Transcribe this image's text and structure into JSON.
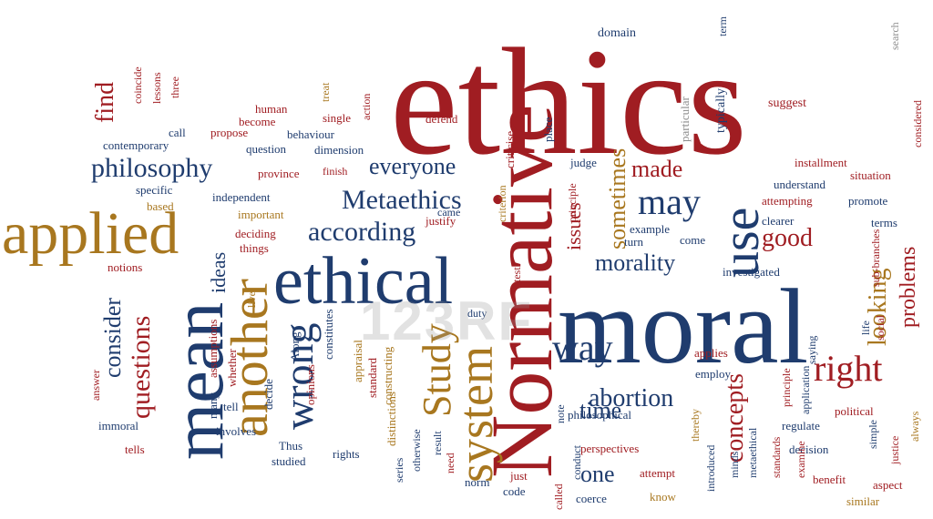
{
  "palette": {
    "navy": "#1f3c6e",
    "red": "#a01d22",
    "tan": "#a8771f",
    "gray": "#8c8c8c",
    "background": "#ffffff"
  },
  "watermark": "123RF",
  "words": [
    {
      "t": "ethics",
      "c": "red"
    },
    {
      "t": "moral",
      "c": "navy"
    },
    {
      "t": "Normative",
      "c": "red"
    },
    {
      "t": "ethical",
      "c": "navy"
    },
    {
      "t": "mean",
      "c": "navy"
    },
    {
      "t": "applied",
      "c": "tan"
    },
    {
      "t": "another",
      "c": "tan"
    },
    {
      "t": "use",
      "c": "navy"
    },
    {
      "t": "may",
      "c": "navy"
    },
    {
      "t": "right",
      "c": "red"
    },
    {
      "t": "way",
      "c": "navy"
    },
    {
      "t": "system",
      "c": "tan"
    },
    {
      "t": "wrong",
      "c": "navy"
    },
    {
      "t": "Study",
      "c": "tan"
    },
    {
      "t": "questions",
      "c": "red"
    },
    {
      "t": "Metaethics",
      "c": "navy"
    },
    {
      "t": "according",
      "c": "navy"
    },
    {
      "t": "philosophy",
      "c": "navy"
    },
    {
      "t": "everyone",
      "c": "navy"
    },
    {
      "t": "made",
      "c": "red"
    },
    {
      "t": "good",
      "c": "red"
    },
    {
      "t": "morality",
      "c": "navy"
    },
    {
      "t": "abortion",
      "c": "navy"
    },
    {
      "t": "concepts",
      "c": "red"
    },
    {
      "t": "looking",
      "c": "tan"
    },
    {
      "t": "problems",
      "c": "red"
    },
    {
      "t": "time",
      "c": "navy"
    },
    {
      "t": "one",
      "c": "navy"
    },
    {
      "t": "consider",
      "c": "navy"
    },
    {
      "t": "find",
      "c": "red"
    },
    {
      "t": "ideas",
      "c": "navy"
    },
    {
      "t": "issues",
      "c": "red"
    },
    {
      "t": "sometimes",
      "c": "tan"
    },
    {
      "t": "domain",
      "c": "navy"
    },
    {
      "t": "term",
      "c": "navy"
    },
    {
      "t": "search",
      "c": "gray"
    },
    {
      "t": "typically",
      "c": "navy"
    },
    {
      "t": "particular",
      "c": "gray"
    },
    {
      "t": "place",
      "c": "navy"
    },
    {
      "t": "considered",
      "c": "red"
    },
    {
      "t": "suggest",
      "c": "red"
    },
    {
      "t": "installment",
      "c": "red"
    },
    {
      "t": "situation",
      "c": "red"
    },
    {
      "t": "understand",
      "c": "navy"
    },
    {
      "t": "attempting",
      "c": "red"
    },
    {
      "t": "promote",
      "c": "navy"
    },
    {
      "t": "clearer",
      "c": "navy"
    },
    {
      "t": "terms",
      "c": "navy"
    },
    {
      "t": "judge",
      "c": "navy"
    },
    {
      "t": "criticise",
      "c": "red"
    },
    {
      "t": "defend",
      "c": "red"
    },
    {
      "t": "action",
      "c": "red"
    },
    {
      "t": "single",
      "c": "red"
    },
    {
      "t": "treat",
      "c": "tan"
    },
    {
      "t": "human",
      "c": "red"
    },
    {
      "t": "become",
      "c": "red"
    },
    {
      "t": "propose",
      "c": "red"
    },
    {
      "t": "behaviour",
      "c": "navy"
    },
    {
      "t": "question",
      "c": "navy"
    },
    {
      "t": "dimension",
      "c": "navy"
    },
    {
      "t": "province",
      "c": "red"
    },
    {
      "t": "finish",
      "c": "red"
    },
    {
      "t": "contemporary",
      "c": "navy"
    },
    {
      "t": "call",
      "c": "navy"
    },
    {
      "t": "coincide",
      "c": "red"
    },
    {
      "t": "lessons",
      "c": "red"
    },
    {
      "t": "three",
      "c": "red"
    },
    {
      "t": "specific",
      "c": "navy"
    },
    {
      "t": "based",
      "c": "tan"
    },
    {
      "t": "independent",
      "c": "navy"
    },
    {
      "t": "important",
      "c": "tan"
    },
    {
      "t": "deciding",
      "c": "red"
    },
    {
      "t": "things",
      "c": "red"
    },
    {
      "t": "justify",
      "c": "red"
    },
    {
      "t": "came",
      "c": "navy"
    },
    {
      "t": "criterion",
      "c": "tan"
    },
    {
      "t": "principle",
      "c": "red"
    },
    {
      "t": "example",
      "c": "navy"
    },
    {
      "t": "come",
      "c": "navy"
    },
    {
      "t": "turn",
      "c": "navy"
    },
    {
      "t": "investigated",
      "c": "navy"
    },
    {
      "t": "notions",
      "c": "red"
    },
    {
      "t": "live",
      "c": "tan"
    },
    {
      "t": "duty",
      "c": "navy"
    },
    {
      "t": "test",
      "c": "red"
    },
    {
      "t": "constitutes",
      "c": "navy"
    },
    {
      "t": "Along",
      "c": "navy"
    },
    {
      "t": "assumptions",
      "c": "red"
    },
    {
      "t": "whether",
      "c": "red"
    },
    {
      "t": "answer",
      "c": "red"
    },
    {
      "t": "many",
      "c": "navy"
    },
    {
      "t": "tell",
      "c": "navy"
    },
    {
      "t": "decide",
      "c": "navy"
    },
    {
      "t": "opinions",
      "c": "red"
    },
    {
      "t": "appraisal",
      "c": "tan"
    },
    {
      "t": "standard",
      "c": "red"
    },
    {
      "t": "constructing",
      "c": "tan"
    },
    {
      "t": "distinctions",
      "c": "tan"
    },
    {
      "t": "rights",
      "c": "navy"
    },
    {
      "t": "Thus",
      "c": "navy"
    },
    {
      "t": "studied",
      "c": "navy"
    },
    {
      "t": "involves",
      "c": "navy"
    },
    {
      "t": "immoral",
      "c": "navy"
    },
    {
      "t": "tells",
      "c": "red"
    },
    {
      "t": "otherwise",
      "c": "navy"
    },
    {
      "t": "result",
      "c": "navy"
    },
    {
      "t": "series",
      "c": "navy"
    },
    {
      "t": "need",
      "c": "red"
    },
    {
      "t": "norm",
      "c": "navy"
    },
    {
      "t": "code",
      "c": "navy"
    },
    {
      "t": "just",
      "c": "red"
    },
    {
      "t": "called",
      "c": "red"
    },
    {
      "t": "conduct",
      "c": "navy"
    },
    {
      "t": "note",
      "c": "navy"
    },
    {
      "t": "philosophical",
      "c": "navy"
    },
    {
      "t": "perspectives",
      "c": "red"
    },
    {
      "t": "attempt",
      "c": "red"
    },
    {
      "t": "coerce",
      "c": "navy"
    },
    {
      "t": "know",
      "c": "tan"
    },
    {
      "t": "thereby",
      "c": "tan"
    },
    {
      "t": "introduced",
      "c": "navy"
    },
    {
      "t": "minds",
      "c": "navy"
    },
    {
      "t": "metaethical",
      "c": "navy"
    },
    {
      "t": "standards",
      "c": "red"
    },
    {
      "t": "applies",
      "c": "red"
    },
    {
      "t": "employ",
      "c": "navy"
    },
    {
      "t": "principle",
      "c": "red"
    },
    {
      "t": "application",
      "c": "navy"
    },
    {
      "t": "regulate",
      "c": "navy"
    },
    {
      "t": "decision",
      "c": "navy"
    },
    {
      "t": "political",
      "c": "red"
    },
    {
      "t": "saying",
      "c": "navy"
    },
    {
      "t": "simple",
      "c": "navy"
    },
    {
      "t": "justice",
      "c": "red"
    },
    {
      "t": "always",
      "c": "tan"
    },
    {
      "t": "benefit",
      "c": "red"
    },
    {
      "t": "aspect",
      "c": "red"
    },
    {
      "t": "similar",
      "c": "tan"
    },
    {
      "t": "examine",
      "c": "red"
    },
    {
      "t": "social",
      "c": "red"
    },
    {
      "t": "life",
      "c": "navy"
    },
    {
      "t": "sub-branches",
      "c": "red"
    }
  ]
}
